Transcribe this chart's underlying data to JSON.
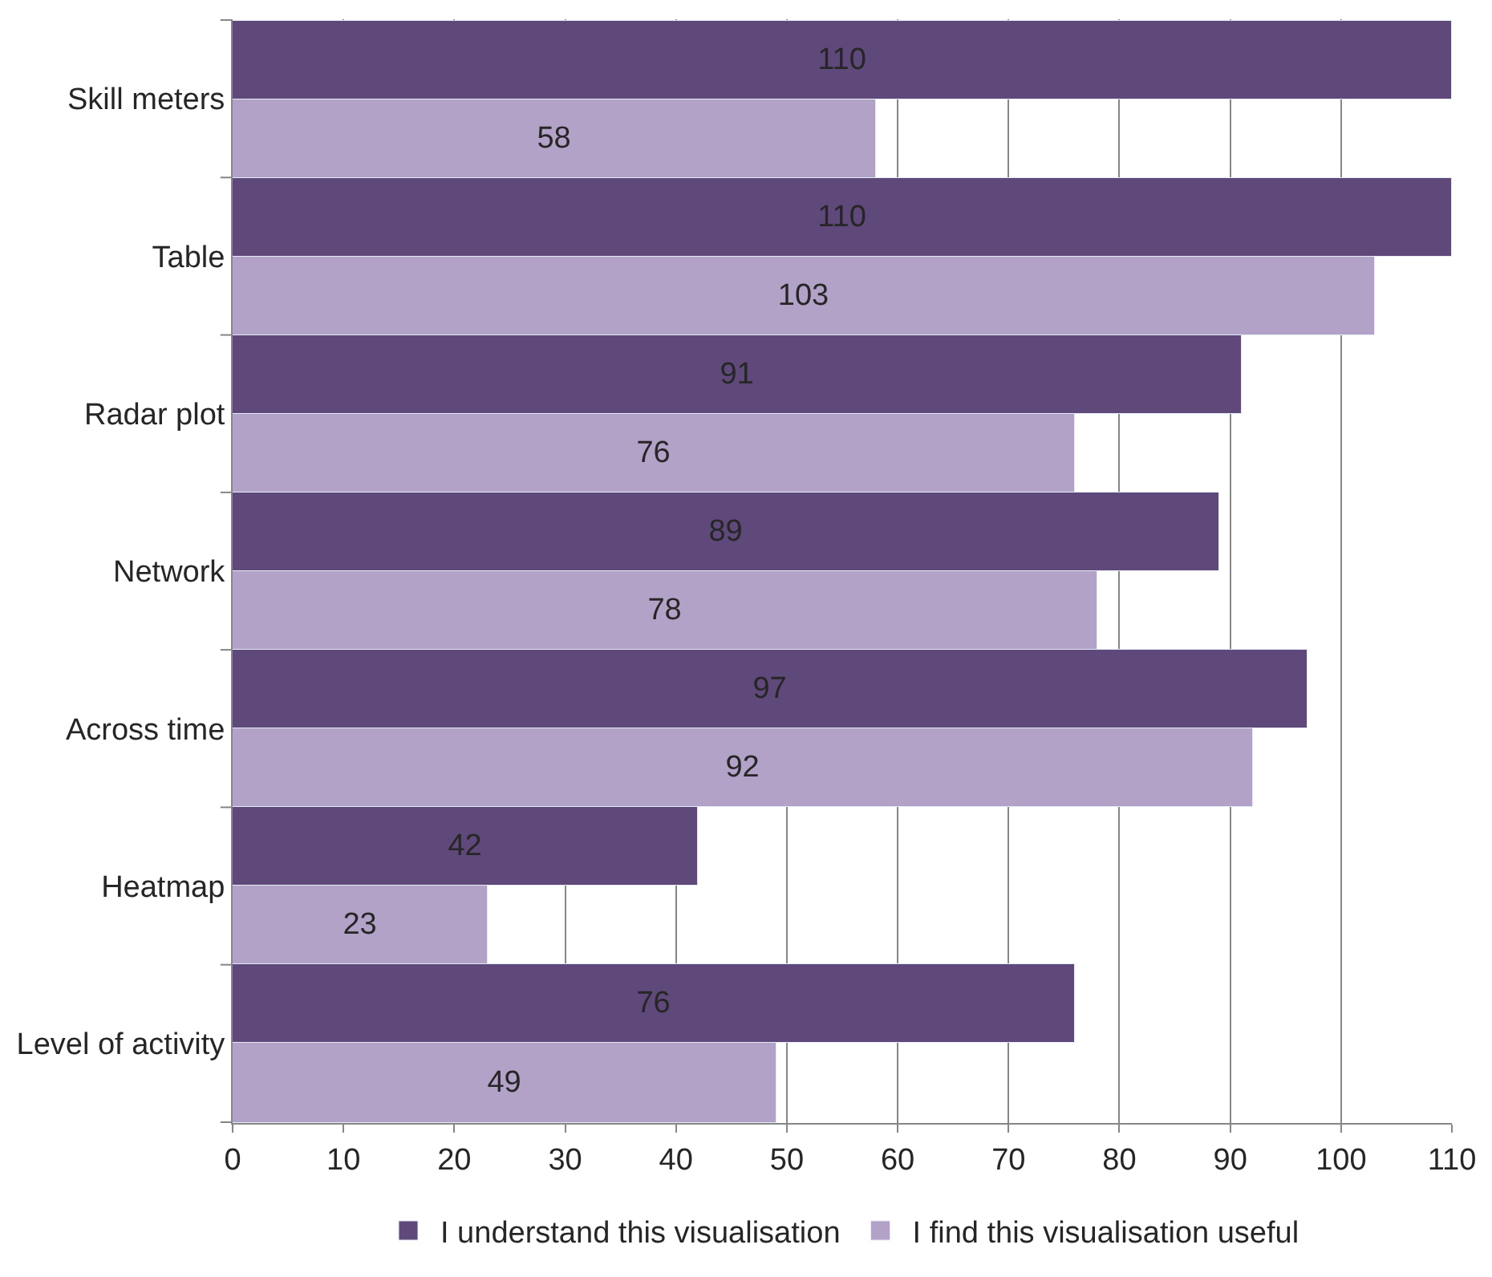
{
  "chart_data": {
    "type": "bar",
    "orientation": "horizontal",
    "categories": [
      "Skill meters",
      "Table",
      "Radar plot",
      "Network",
      "Across time",
      "Heatmap",
      "Level of activity"
    ],
    "series": [
      {
        "name": "I understand this visualisation",
        "color": "#5f497a",
        "values": [
          110,
          110,
          91,
          89,
          97,
          42,
          76
        ]
      },
      {
        "name": "I find this visualisation useful",
        "color": "#b3a2c7",
        "values": [
          58,
          103,
          76,
          78,
          92,
          23,
          49
        ]
      }
    ],
    "xlim": [
      0,
      110
    ],
    "xticks": [
      0,
      10,
      20,
      30,
      40,
      50,
      60,
      70,
      80,
      90,
      100,
      110
    ],
    "grid": "x",
    "legend": "bottom",
    "data_labels": true
  }
}
